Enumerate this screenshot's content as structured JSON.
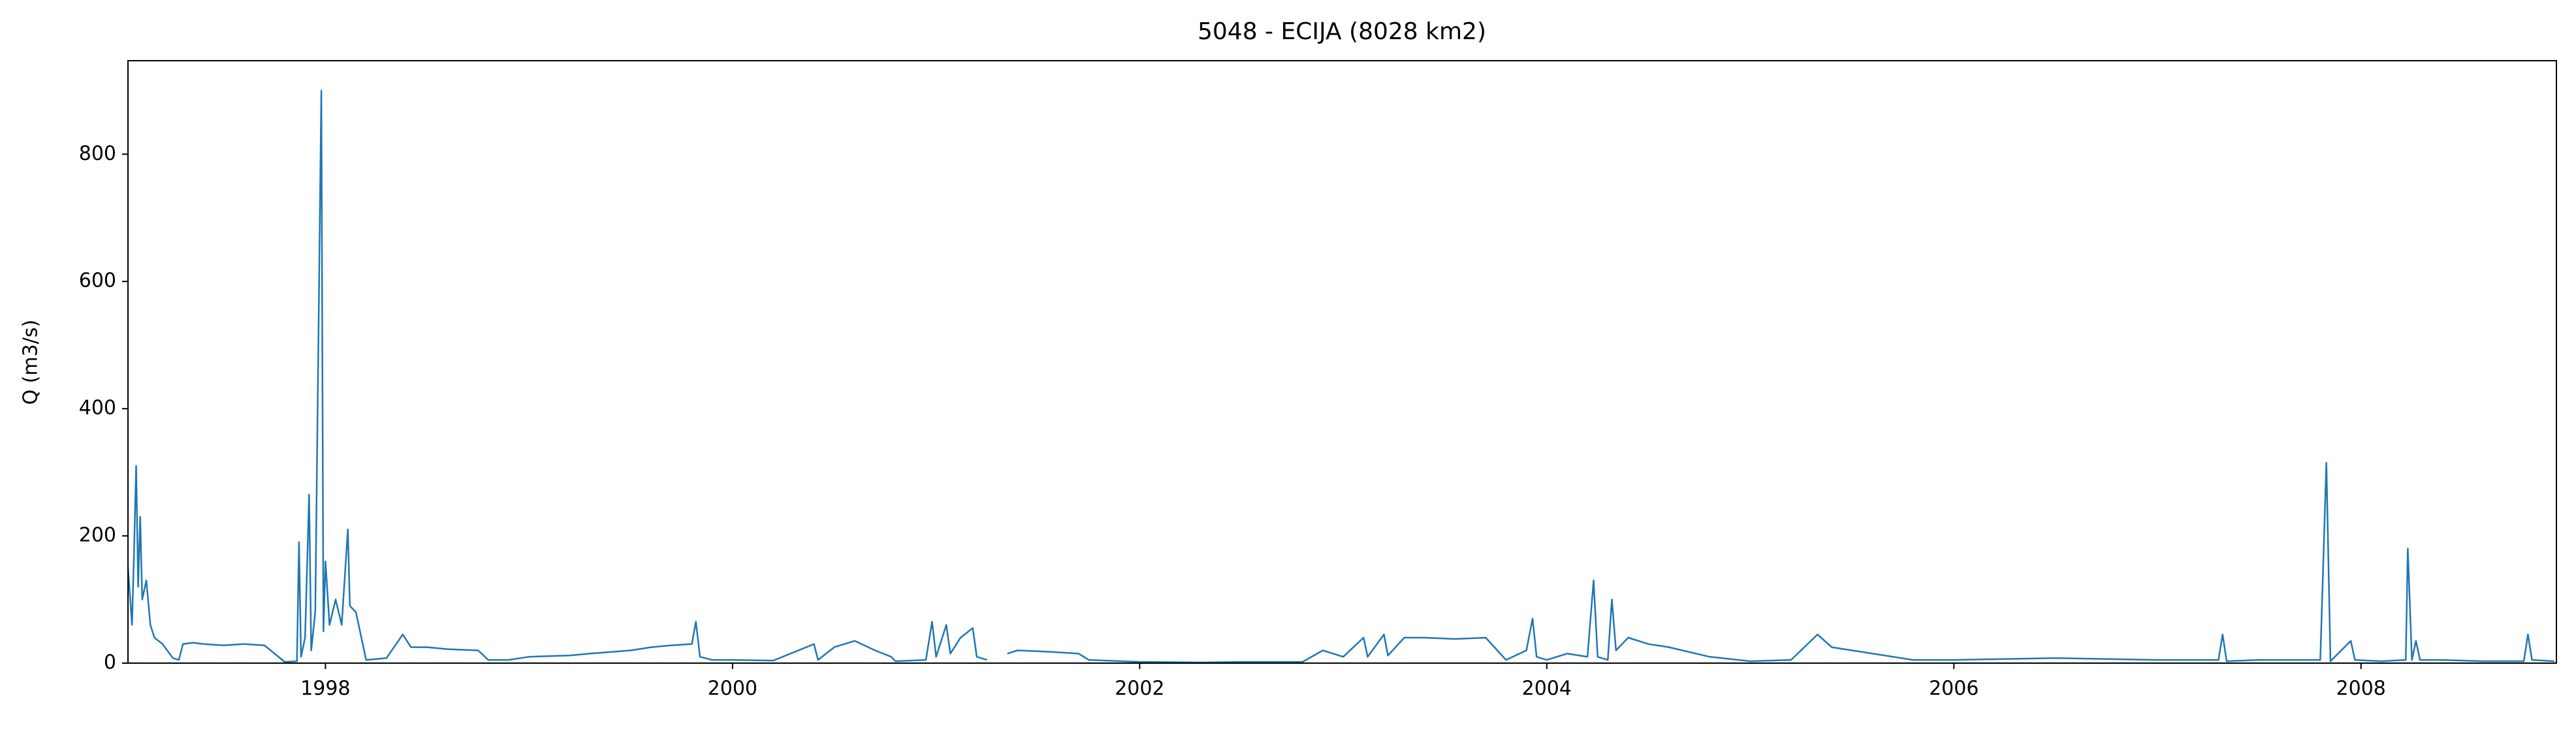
{
  "chart_data": {
    "type": "line",
    "title": "5048 - ECIJA (8028 km2)",
    "y_label": "Q (m3/s)",
    "x": [
      1997.03,
      1997.05,
      1997.06,
      1997.07,
      1997.08,
      1997.09,
      1997.1,
      1997.12,
      1997.14,
      1997.16,
      1997.2,
      1997.25,
      1997.28,
      1997.3,
      1997.35,
      1997.4,
      1997.5,
      1997.6,
      1997.7,
      1997.75,
      1997.8,
      1997.86,
      1997.87,
      1997.88,
      1997.9,
      1997.92,
      1997.93,
      1997.95,
      1997.98,
      1997.99,
      1998.0,
      1998.02,
      1998.05,
      1998.08,
      1998.11,
      1998.12,
      1998.15,
      1998.2,
      1998.3,
      1998.38,
      1998.42,
      1998.5,
      1998.6,
      1998.75,
      1998.8,
      1998.9,
      1999.0,
      1999.2,
      1999.3,
      1999.5,
      1999.6,
      1999.7,
      1999.8,
      1999.82,
      1999.84,
      1999.9,
      2000.0,
      2000.2,
      2000.4,
      2000.42,
      2000.5,
      2000.6,
      2000.7,
      2000.78,
      2000.8,
      2000.95,
      2000.98,
      2001.0,
      2001.05,
      2001.07,
      2001.12,
      2001.18,
      2001.2,
      2001.25,
      null,
      2001.35,
      2001.4,
      2001.55,
      2001.7,
      2001.75,
      2002.0,
      2002.3,
      2002.5,
      2002.8,
      2002.9,
      2003.0,
      2003.1,
      2003.12,
      2003.2,
      2003.22,
      2003.3,
      2003.4,
      2003.55,
      2003.7,
      2003.8,
      2003.9,
      2003.93,
      2003.95,
      2004.0,
      2004.1,
      2004.2,
      2004.23,
      2004.25,
      2004.3,
      2004.32,
      2004.34,
      2004.4,
      2004.5,
      2004.6,
      2004.8,
      2005.0,
      2005.2,
      2005.33,
      2005.4,
      2005.5,
      2005.8,
      2006.0,
      2006.5,
      2007.0,
      2007.3,
      2007.32,
      2007.34,
      2007.5,
      2007.8,
      2007.83,
      2007.85,
      2007.95,
      2007.97,
      2008.1,
      2008.22,
      2008.23,
      2008.25,
      2008.27,
      2008.29,
      2008.4,
      2008.6,
      2008.8,
      2008.82,
      2008.84,
      2008.95
    ],
    "series": [
      {
        "name": "Q",
        "color": "#1f77b4",
        "values": [
          150,
          60,
          180,
          310,
          120,
          230,
          100,
          130,
          60,
          40,
          30,
          8,
          5,
          30,
          32,
          30,
          28,
          30,
          28,
          15,
          2,
          3,
          190,
          10,
          40,
          265,
          20,
          80,
          900,
          50,
          160,
          60,
          100,
          60,
          210,
          90,
          80,
          5,
          8,
          45,
          25,
          25,
          22,
          20,
          5,
          5,
          10,
          12,
          15,
          20,
          25,
          28,
          30,
          65,
          10,
          5,
          5,
          4,
          30,
          5,
          25,
          35,
          20,
          10,
          3,
          5,
          65,
          10,
          60,
          15,
          40,
          55,
          10,
          5,
          null,
          15,
          20,
          18,
          15,
          5,
          2,
          1,
          2,
          2,
          20,
          10,
          40,
          10,
          45,
          12,
          40,
          40,
          38,
          40,
          5,
          20,
          70,
          10,
          5,
          15,
          10,
          130,
          10,
          5,
          100,
          20,
          40,
          30,
          25,
          10,
          3,
          5,
          45,
          25,
          20,
          5,
          5,
          8,
          5,
          5,
          45,
          3,
          5,
          5,
          315,
          3,
          35,
          5,
          3,
          5,
          180,
          5,
          35,
          5,
          5,
          3,
          3,
          45,
          5,
          3
        ]
      }
    ],
    "xlim": [
      1997.03,
      2008.96
    ],
    "ylim": [
      0,
      947
    ],
    "xticks": [
      1998,
      2000,
      2002,
      2004,
      2006,
      2008
    ],
    "yticks": [
      0,
      200,
      400,
      600,
      800
    ]
  }
}
